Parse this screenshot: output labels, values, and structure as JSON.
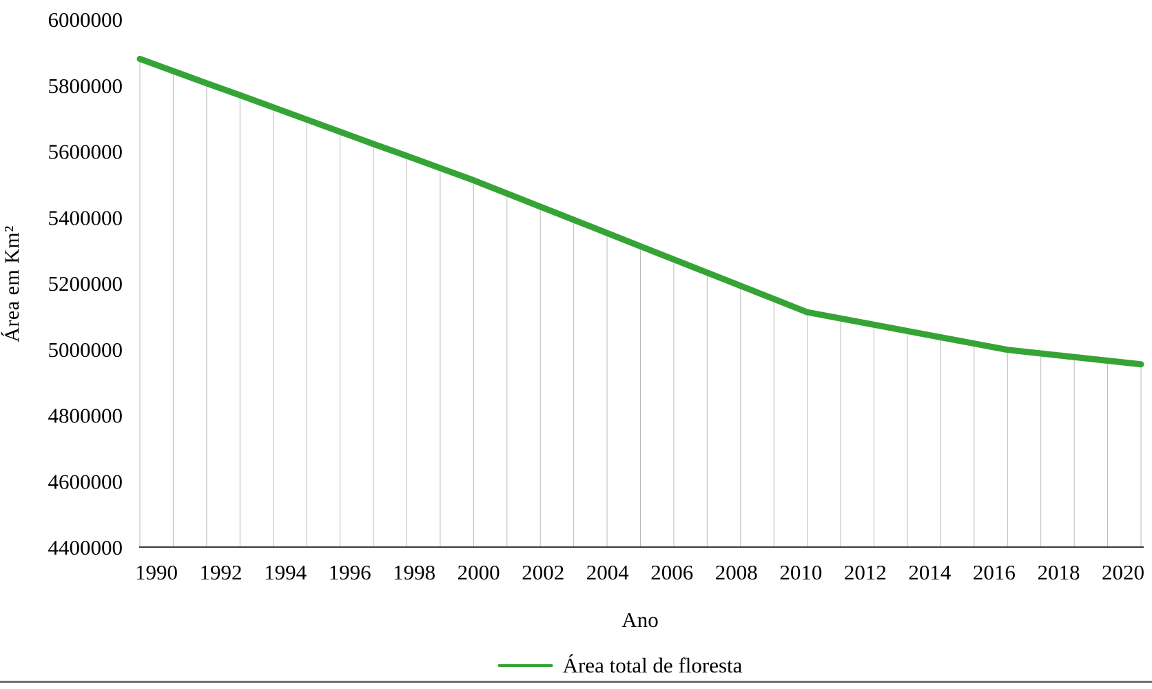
{
  "chart_data": {
    "type": "line",
    "xlabel": "Ano",
    "ylabel": "Área em Km²",
    "legend_position": "bottom",
    "x": [
      1990,
      1991,
      1992,
      1993,
      1994,
      1995,
      1996,
      1997,
      1998,
      1999,
      2000,
      2001,
      2002,
      2003,
      2004,
      2005,
      2006,
      2007,
      2008,
      2009,
      2010,
      2011,
      2012,
      2013,
      2014,
      2015,
      2016,
      2017,
      2018,
      2019,
      2020
    ],
    "series": [
      {
        "name": "Área total de floresta",
        "values": [
          5880000,
          5843000,
          5806000,
          5770000,
          5733000,
          5696000,
          5659000,
          5622000,
          5586000,
          5549000,
          5512000,
          5472000,
          5432000,
          5392000,
          5352000,
          5312000,
          5272000,
          5232000,
          5192000,
          5152000,
          5112000,
          5093000,
          5074000,
          5055000,
          5036000,
          5017000,
          4998000,
          4987000,
          4976000,
          4965000,
          4954000
        ]
      }
    ],
    "ylim": [
      4400000,
      6000000
    ],
    "ytick_step": 200000,
    "ytick_labels": [
      "4400000",
      "4600000",
      "4800000",
      "5000000",
      "5200000",
      "5400000",
      "5600000",
      "5800000",
      "6000000"
    ],
    "xtick_labels": [
      "1990",
      "1992",
      "1994",
      "1996",
      "1998",
      "2000",
      "2002",
      "2004",
      "2006",
      "2008",
      "2010",
      "2012",
      "2014",
      "2016",
      "2018",
      "2020"
    ],
    "grid": "vertical drop line at every year",
    "line_color": "#35A435",
    "gridline_color": "#b9b9b9",
    "axis_color": "#3a3a3a",
    "divider_color": "#6f6f6f",
    "text_color": "#000000"
  }
}
